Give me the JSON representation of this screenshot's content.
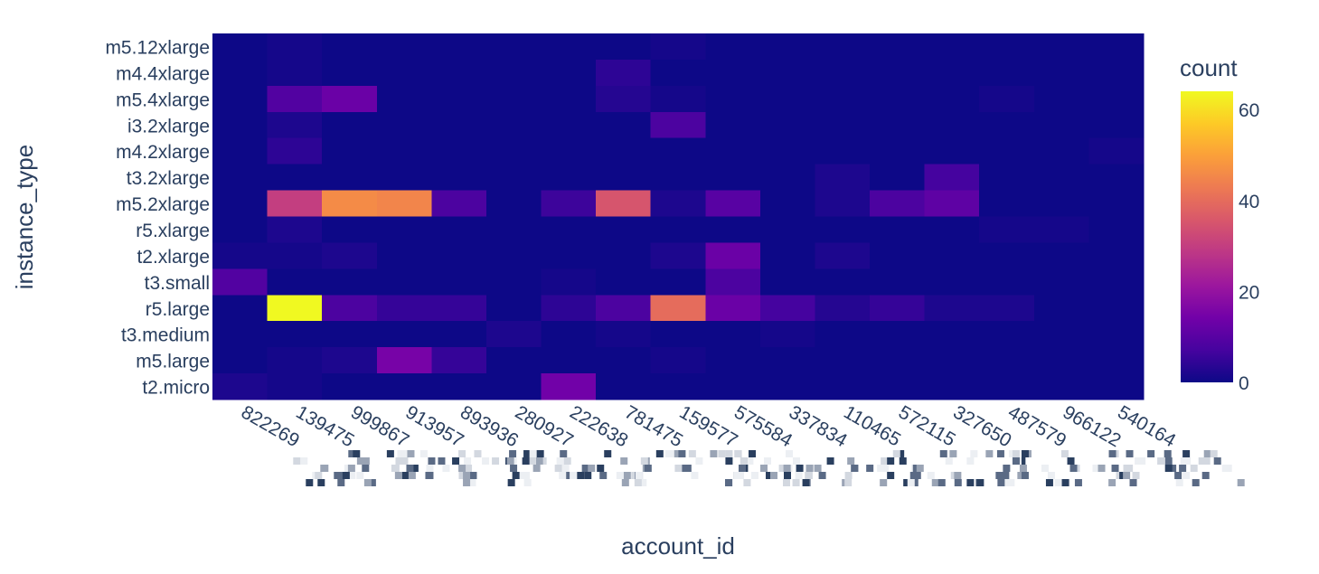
{
  "chart_data": {
    "type": "heatmap",
    "xlabel": "account_id",
    "ylabel": "instance_type",
    "colorbar_title": "count",
    "colorbar_ticks": [
      0,
      20,
      40,
      60
    ],
    "zmin": 0,
    "zmax": 64,
    "colorscale": [
      "#0d0887",
      "#46039f",
      "#7201a8",
      "#9c179e",
      "#bd3786",
      "#d8576b",
      "#ed7953",
      "#fb9f3a",
      "#fdca26",
      "#f0f921"
    ],
    "x_categories": [
      "822269",
      "139475",
      "999867",
      "913957",
      "893936",
      "280927",
      "222638",
      "781475",
      "159577",
      "575584",
      "337834",
      "110465",
      "572115",
      "327650",
      "487579",
      "966122",
      "540164"
    ],
    "y_categories": [
      "m5.12xlarge",
      "m4.4xlarge",
      "m5.4xlarge",
      "i3.2xlarge",
      "m4.2xlarge",
      "t3.2xlarge",
      "m5.2xlarge",
      "r5.xlarge",
      "t2.xlarge",
      "t3.small",
      "r5.large",
      "t3.medium",
      "m5.large",
      "t2.micro"
    ],
    "z": [
      [
        0,
        1,
        0,
        0,
        0,
        0,
        0,
        0,
        1,
        0,
        0,
        0,
        0,
        0,
        0,
        0,
        0
      ],
      [
        0,
        1,
        0,
        0,
        0,
        0,
        0,
        4,
        0,
        0,
        0,
        0,
        0,
        0,
        0,
        0,
        0
      ],
      [
        0,
        9,
        13,
        0,
        0,
        0,
        0,
        3,
        1,
        0,
        0,
        0,
        0,
        0,
        1,
        0,
        0
      ],
      [
        0,
        2,
        0,
        0,
        0,
        0,
        0,
        0,
        8,
        0,
        0,
        0,
        0,
        0,
        0,
        0,
        0
      ],
      [
        0,
        4,
        0,
        0,
        0,
        0,
        0,
        0,
        0,
        0,
        0,
        0,
        0,
        0,
        0,
        0,
        1
      ],
      [
        0,
        0,
        0,
        0,
        0,
        0,
        0,
        0,
        0,
        0,
        0,
        2,
        0,
        7,
        0,
        0,
        0
      ],
      [
        0,
        30,
        46,
        45,
        8,
        0,
        6,
        35,
        2,
        10,
        0,
        2,
        8,
        11,
        0,
        0,
        0
      ],
      [
        0,
        2,
        0,
        0,
        0,
        0,
        0,
        0,
        0,
        0,
        0,
        0,
        0,
        0,
        1,
        1,
        0
      ],
      [
        1,
        1,
        2,
        0,
        0,
        0,
        0,
        0,
        2,
        13,
        0,
        2,
        0,
        0,
        0,
        0,
        0
      ],
      [
        9,
        0,
        0,
        0,
        0,
        0,
        1,
        0,
        0,
        8,
        0,
        0,
        0,
        0,
        0,
        0,
        0
      ],
      [
        0,
        64,
        8,
        5,
        5,
        0,
        4,
        8,
        40,
        13,
        7,
        3,
        5,
        2,
        2,
        0,
        0
      ],
      [
        0,
        0,
        0,
        0,
        0,
        2,
        0,
        1,
        0,
        0,
        1,
        0,
        0,
        0,
        0,
        0,
        0
      ],
      [
        0,
        1,
        2,
        15,
        5,
        0,
        0,
        0,
        1,
        0,
        0,
        0,
        0,
        0,
        0,
        0,
        0
      ],
      [
        2,
        1,
        0,
        0,
        0,
        0,
        14,
        0,
        0,
        0,
        0,
        0,
        0,
        0,
        0,
        0,
        0
      ]
    ]
  }
}
